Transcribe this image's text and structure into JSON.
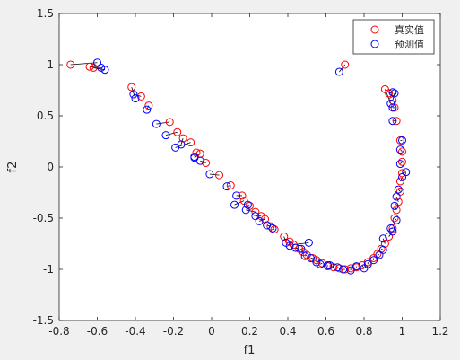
{
  "chart_data": {
    "type": "scatter",
    "xlabel": "f1",
    "ylabel": "f2",
    "xlim": [
      -0.8,
      1.2
    ],
    "ylim": [
      -1.5,
      1.5
    ],
    "xticks": [
      "-0.8",
      "-0.6",
      "-0.4",
      "-0.2",
      "0",
      "0.2",
      "0.4",
      "0.6",
      "0.8",
      "1",
      "1.2"
    ],
    "yticks": [
      "-1.5",
      "-1",
      "-0.5",
      "0",
      "0.5",
      "1",
      "1.5"
    ],
    "grid": false,
    "legend_position": "top-right",
    "connector_color": "#000000",
    "series": [
      {
        "name": "真实值",
        "color": "#ff0000",
        "marker": "open-circle"
      },
      {
        "name": "预测值",
        "color": "#0000ff",
        "marker": "open-circle"
      }
    ],
    "points": [
      [
        -0.74,
        1.0,
        -0.6,
        1.02
      ],
      [
        -0.64,
        0.98,
        -0.58,
        0.97
      ],
      [
        -0.62,
        0.97,
        -0.56,
        0.95
      ],
      [
        -0.42,
        0.78,
        -0.4,
        0.67
      ],
      [
        -0.37,
        0.69,
        -0.41,
        0.71
      ],
      [
        -0.33,
        0.6,
        -0.34,
        0.56
      ],
      [
        -0.22,
        0.44,
        -0.29,
        0.42
      ],
      [
        -0.18,
        0.34,
        -0.24,
        0.31
      ],
      [
        -0.15,
        0.28,
        -0.16,
        0.22
      ],
      [
        -0.11,
        0.24,
        -0.19,
        0.19
      ],
      [
        -0.08,
        0.14,
        -0.09,
        0.1
      ],
      [
        -0.06,
        0.13,
        -0.09,
        0.09
      ],
      [
        -0.03,
        0.04,
        -0.06,
        0.06
      ],
      [
        0.04,
        -0.08,
        -0.01,
        -0.07
      ],
      [
        0.1,
        -0.18,
        0.08,
        -0.19
      ],
      [
        0.16,
        -0.28,
        0.13,
        -0.28
      ],
      [
        0.17,
        -0.33,
        0.12,
        -0.37
      ],
      [
        0.2,
        -0.38,
        0.19,
        -0.37
      ],
      [
        0.23,
        -0.44,
        0.18,
        -0.42
      ],
      [
        0.26,
        -0.48,
        0.23,
        -0.48
      ],
      [
        0.28,
        -0.51,
        0.25,
        -0.53
      ],
      [
        0.31,
        -0.58,
        0.29,
        -0.57
      ],
      [
        0.33,
        -0.61,
        0.32,
        -0.6
      ],
      [
        0.38,
        -0.68,
        0.39,
        -0.74
      ],
      [
        0.41,
        -0.73,
        0.41,
        -0.77
      ],
      [
        0.43,
        -0.76,
        0.51,
        -0.74
      ],
      [
        0.46,
        -0.8,
        0.44,
        -0.79
      ],
      [
        0.48,
        -0.83,
        0.47,
        -0.8
      ],
      [
        0.5,
        -0.86,
        0.49,
        -0.87
      ],
      [
        0.53,
        -0.89,
        0.52,
        -0.89
      ],
      [
        0.55,
        -0.91,
        0.55,
        -0.93
      ],
      [
        0.58,
        -0.94,
        0.57,
        -0.95
      ],
      [
        0.61,
        -0.97,
        0.61,
        -0.96
      ],
      [
        0.64,
        -0.98,
        0.62,
        -0.96
      ],
      [
        0.67,
        -0.99,
        0.66,
        -0.98
      ],
      [
        0.7,
        -1.0,
        0.69,
        -1.0
      ],
      [
        0.73,
        -0.99,
        0.73,
        -1.01
      ],
      [
        0.76,
        -0.98,
        0.76,
        -0.97
      ],
      [
        0.79,
        -0.96,
        0.8,
        -0.99
      ],
      [
        0.82,
        -0.93,
        0.82,
        -0.95
      ],
      [
        0.85,
        -0.89,
        0.85,
        -0.91
      ],
      [
        0.87,
        -0.85,
        0.88,
        -0.86
      ],
      [
        0.89,
        -0.8,
        0.9,
        -0.81
      ],
      [
        0.91,
        -0.75,
        0.9,
        -0.7
      ],
      [
        0.93,
        -0.68,
        0.95,
        -0.63
      ],
      [
        0.95,
        -0.6,
        0.94,
        -0.6
      ],
      [
        0.96,
        -0.5,
        0.97,
        -0.52
      ],
      [
        0.97,
        -0.42,
        0.96,
        -0.38
      ],
      [
        0.98,
        -0.34,
        0.97,
        -0.29
      ],
      [
        0.99,
        -0.24,
        0.98,
        -0.22
      ],
      [
        0.99,
        -0.14,
        1.0,
        -0.1
      ],
      [
        1.0,
        -0.06,
        1.02,
        -0.05
      ],
      [
        1.0,
        0.05,
        0.99,
        0.03
      ],
      [
        1.0,
        0.15,
        0.99,
        0.17
      ],
      [
        0.99,
        0.26,
        1.0,
        0.26
      ],
      [
        0.97,
        0.45,
        0.95,
        0.45
      ],
      [
        0.96,
        0.58,
        0.95,
        0.58
      ],
      [
        0.95,
        0.65,
        0.96,
        0.72
      ],
      [
        0.93,
        0.72,
        0.95,
        0.73
      ],
      [
        0.91,
        0.76,
        0.94,
        0.62
      ],
      [
        0.7,
        1.0,
        0.67,
        0.93
      ]
    ]
  }
}
